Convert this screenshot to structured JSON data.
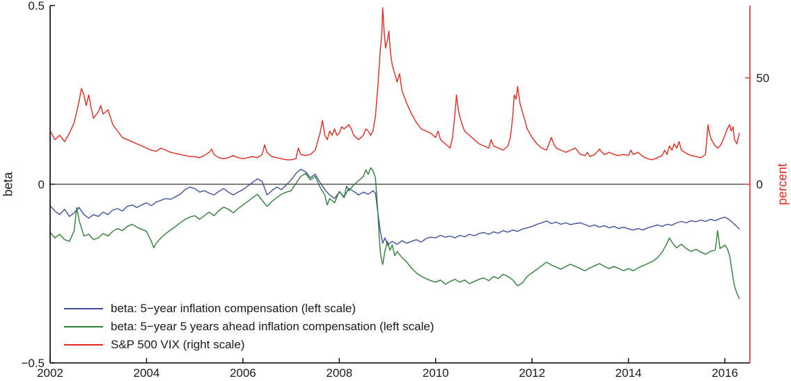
{
  "figure": {
    "background_color": "#ffffff",
    "axes_color": "#000000",
    "right_axis_color": "#e8281e"
  },
  "chart_data": {
    "type": "line",
    "title": "",
    "xlabel": "",
    "ylabel_left": "beta",
    "ylabel_right": "percent",
    "xlim": [
      2002,
      2016.52
    ],
    "ylim_left": [
      -0.5,
      0.5
    ],
    "ylim_right": [
      -84,
      84
    ],
    "grid": false,
    "legend_position": "bottom-left",
    "zero_line_value": 0,
    "x_ticks": [
      {
        "value": 2002,
        "label": "2002"
      },
      {
        "value": 2004,
        "label": "2004"
      },
      {
        "value": 2006,
        "label": "2006"
      },
      {
        "value": 2008,
        "label": "2008"
      },
      {
        "value": 2010,
        "label": "2010"
      },
      {
        "value": 2012,
        "label": "2012"
      },
      {
        "value": 2014,
        "label": "2014"
      },
      {
        "value": 2016,
        "label": "2016"
      }
    ],
    "left_ticks": [
      {
        "value": 0.5,
        "label": "0.5"
      },
      {
        "value": 0,
        "label": "0"
      },
      {
        "value": -0.5,
        "label": "−0.5"
      }
    ],
    "right_ticks": [
      {
        "value": 50,
        "label": "50"
      },
      {
        "value": 0,
        "label": "0"
      }
    ],
    "series": [
      {
        "slug": "beta-5y-inflation-compensation",
        "name": "beta: 5−year inflation compensation (left scale)",
        "axis": "left",
        "color": "#404ea0",
        "x": [
          2002.0,
          2002.1,
          2002.2,
          2002.3,
          2002.4,
          2002.5,
          2002.6,
          2002.7,
          2002.8,
          2002.9,
          2003.0,
          2003.1,
          2003.2,
          2003.3,
          2003.4,
          2003.5,
          2003.6,
          2003.7,
          2003.8,
          2003.9,
          2004.0,
          2004.1,
          2004.2,
          2004.3,
          2004.4,
          2004.5,
          2004.6,
          2004.7,
          2004.8,
          2004.9,
          2005.0,
          2005.1,
          2005.2,
          2005.3,
          2005.4,
          2005.5,
          2005.6,
          2005.7,
          2005.8,
          2005.9,
          2006.0,
          2006.1,
          2006.2,
          2006.3,
          2006.4,
          2006.5,
          2006.6,
          2006.7,
          2006.8,
          2006.9,
          2007.0,
          2007.1,
          2007.2,
          2007.3,
          2007.4,
          2007.5,
          2007.6,
          2007.7,
          2007.8,
          2007.9,
          2008.0,
          2008.1,
          2008.2,
          2008.3,
          2008.4,
          2008.5,
          2008.6,
          2008.7,
          2008.75,
          2008.8,
          2008.85,
          2008.9,
          2008.95,
          2009.0,
          2009.1,
          2009.2,
          2009.3,
          2009.4,
          2009.5,
          2009.6,
          2009.7,
          2009.8,
          2009.9,
          2010.0,
          2010.1,
          2010.2,
          2010.3,
          2010.4,
          2010.5,
          2010.6,
          2010.7,
          2010.8,
          2010.9,
          2011.0,
          2011.1,
          2011.2,
          2011.3,
          2011.4,
          2011.5,
          2011.6,
          2011.7,
          2011.8,
          2011.9,
          2012.0,
          2012.1,
          2012.2,
          2012.3,
          2012.4,
          2012.5,
          2012.6,
          2012.7,
          2012.8,
          2012.9,
          2013.0,
          2013.1,
          2013.2,
          2013.3,
          2013.4,
          2013.5,
          2013.6,
          2013.7,
          2013.8,
          2013.9,
          2014.0,
          2014.1,
          2014.2,
          2014.3,
          2014.4,
          2014.5,
          2014.6,
          2014.7,
          2014.8,
          2014.9,
          2015.0,
          2015.1,
          2015.2,
          2015.3,
          2015.4,
          2015.5,
          2015.6,
          2015.7,
          2015.8,
          2015.9,
          2016.0,
          2016.1,
          2016.2,
          2016.3
        ],
        "y": [
          -0.06,
          -0.075,
          -0.085,
          -0.07,
          -0.09,
          -0.08,
          -0.065,
          -0.085,
          -0.095,
          -0.085,
          -0.09,
          -0.078,
          -0.085,
          -0.072,
          -0.068,
          -0.075,
          -0.062,
          -0.058,
          -0.065,
          -0.058,
          -0.052,
          -0.06,
          -0.05,
          -0.045,
          -0.04,
          -0.042,
          -0.035,
          -0.028,
          -0.015,
          -0.008,
          -0.012,
          -0.022,
          -0.018,
          -0.025,
          -0.03,
          -0.02,
          -0.012,
          -0.022,
          -0.03,
          -0.022,
          -0.015,
          -0.005,
          0.005,
          0.015,
          0.008,
          -0.03,
          -0.018,
          -0.008,
          -0.015,
          -0.002,
          0.012,
          0.03,
          0.042,
          0.035,
          0.018,
          0.028,
          0.005,
          -0.015,
          -0.03,
          -0.04,
          -0.022,
          -0.035,
          -0.012,
          -0.02,
          -0.03,
          -0.022,
          -0.028,
          -0.018,
          -0.025,
          -0.08,
          -0.13,
          -0.165,
          -0.15,
          -0.17,
          -0.16,
          -0.168,
          -0.158,
          -0.165,
          -0.16,
          -0.155,
          -0.162,
          -0.152,
          -0.148,
          -0.15,
          -0.143,
          -0.148,
          -0.145,
          -0.15,
          -0.143,
          -0.147,
          -0.14,
          -0.144,
          -0.138,
          -0.135,
          -0.14,
          -0.133,
          -0.137,
          -0.13,
          -0.134,
          -0.128,
          -0.132,
          -0.125,
          -0.122,
          -0.118,
          -0.112,
          -0.108,
          -0.103,
          -0.11,
          -0.106,
          -0.112,
          -0.108,
          -0.113,
          -0.11,
          -0.108,
          -0.113,
          -0.118,
          -0.114,
          -0.12,
          -0.116,
          -0.122,
          -0.118,
          -0.124,
          -0.12,
          -0.125,
          -0.128,
          -0.124,
          -0.128,
          -0.122,
          -0.118,
          -0.114,
          -0.118,
          -0.112,
          -0.115,
          -0.108,
          -0.104,
          -0.108,
          -0.102,
          -0.105,
          -0.1,
          -0.104,
          -0.098,
          -0.102,
          -0.096,
          -0.092,
          -0.1,
          -0.112,
          -0.125
        ]
      },
      {
        "slug": "beta-5y5y-inflation-compensation",
        "name": "beta: 5−year 5 years ahead inflation compensation (left scale)",
        "axis": "left",
        "color": "#2b8235",
        "x": [
          2002.0,
          2002.1,
          2002.2,
          2002.3,
          2002.4,
          2002.5,
          2002.55,
          2002.6,
          2002.7,
          2002.8,
          2002.9,
          2003.0,
          2003.1,
          2003.2,
          2003.3,
          2003.4,
          2003.5,
          2003.6,
          2003.7,
          2003.8,
          2003.9,
          2004.0,
          2004.1,
          2004.15,
          2004.2,
          2004.3,
          2004.4,
          2004.5,
          2004.6,
          2004.7,
          2004.8,
          2004.9,
          2005.0,
          2005.1,
          2005.2,
          2005.3,
          2005.4,
          2005.5,
          2005.6,
          2005.7,
          2005.8,
          2005.9,
          2006.0,
          2006.1,
          2006.2,
          2006.3,
          2006.4,
          2006.5,
          2006.6,
          2006.7,
          2006.8,
          2006.9,
          2007.0,
          2007.1,
          2007.2,
          2007.3,
          2007.4,
          2007.5,
          2007.6,
          2007.7,
          2007.75,
          2007.8,
          2007.9,
          2008.0,
          2008.1,
          2008.15,
          2008.2,
          2008.3,
          2008.4,
          2008.5,
          2008.55,
          2008.6,
          2008.65,
          2008.7,
          2008.75,
          2008.8,
          2008.83,
          2008.86,
          2008.9,
          2008.95,
          2009.0,
          2009.05,
          2009.1,
          2009.15,
          2009.2,
          2009.3,
          2009.4,
          2009.5,
          2009.6,
          2009.7,
          2009.8,
          2009.9,
          2010.0,
          2010.1,
          2010.2,
          2010.3,
          2010.4,
          2010.5,
          2010.6,
          2010.7,
          2010.8,
          2010.9,
          2011.0,
          2011.1,
          2011.2,
          2011.3,
          2011.4,
          2011.5,
          2011.6,
          2011.7,
          2011.8,
          2011.9,
          2012.0,
          2012.1,
          2012.2,
          2012.3,
          2012.4,
          2012.5,
          2012.6,
          2012.7,
          2012.8,
          2012.9,
          2013.0,
          2013.1,
          2013.2,
          2013.3,
          2013.4,
          2013.5,
          2013.6,
          2013.7,
          2013.8,
          2013.9,
          2014.0,
          2014.1,
          2014.2,
          2014.3,
          2014.4,
          2014.5,
          2014.6,
          2014.7,
          2014.8,
          2014.85,
          2014.9,
          2015.0,
          2015.1,
          2015.2,
          2015.3,
          2015.4,
          2015.5,
          2015.6,
          2015.7,
          2015.8,
          2015.85,
          2015.9,
          2016.0,
          2016.05,
          2016.1,
          2016.15,
          2016.2,
          2016.25,
          2016.3
        ],
        "y": [
          -0.135,
          -0.15,
          -0.14,
          -0.155,
          -0.16,
          -0.13,
          -0.065,
          -0.1,
          -0.145,
          -0.14,
          -0.155,
          -0.15,
          -0.138,
          -0.145,
          -0.132,
          -0.124,
          -0.13,
          -0.118,
          -0.112,
          -0.12,
          -0.126,
          -0.132,
          -0.16,
          -0.178,
          -0.165,
          -0.15,
          -0.138,
          -0.128,
          -0.118,
          -0.108,
          -0.098,
          -0.092,
          -0.088,
          -0.098,
          -0.088,
          -0.078,
          -0.088,
          -0.074,
          -0.064,
          -0.07,
          -0.08,
          -0.068,
          -0.058,
          -0.048,
          -0.038,
          -0.028,
          -0.045,
          -0.062,
          -0.048,
          -0.038,
          -0.028,
          -0.022,
          -0.018,
          0.002,
          0.022,
          0.03,
          0.012,
          0.022,
          -0.008,
          -0.03,
          -0.058,
          -0.04,
          -0.052,
          -0.02,
          -0.038,
          -0.005,
          -0.018,
          -0.002,
          0.01,
          0.022,
          0.04,
          0.028,
          0.046,
          0.038,
          0.018,
          -0.08,
          -0.15,
          -0.2,
          -0.225,
          -0.185,
          -0.16,
          -0.185,
          -0.17,
          -0.2,
          -0.188,
          -0.205,
          -0.218,
          -0.235,
          -0.248,
          -0.258,
          -0.264,
          -0.27,
          -0.274,
          -0.268,
          -0.28,
          -0.272,
          -0.266,
          -0.274,
          -0.268,
          -0.278,
          -0.272,
          -0.266,
          -0.262,
          -0.27,
          -0.258,
          -0.264,
          -0.252,
          -0.258,
          -0.268,
          -0.284,
          -0.276,
          -0.258,
          -0.248,
          -0.238,
          -0.228,
          -0.218,
          -0.226,
          -0.232,
          -0.238,
          -0.23,
          -0.224,
          -0.23,
          -0.236,
          -0.242,
          -0.234,
          -0.228,
          -0.222,
          -0.23,
          -0.236,
          -0.23,
          -0.236,
          -0.242,
          -0.236,
          -0.242,
          -0.234,
          -0.228,
          -0.222,
          -0.216,
          -0.206,
          -0.19,
          -0.165,
          -0.15,
          -0.162,
          -0.178,
          -0.168,
          -0.18,
          -0.188,
          -0.182,
          -0.19,
          -0.196,
          -0.188,
          -0.184,
          -0.13,
          -0.18,
          -0.17,
          -0.18,
          -0.2,
          -0.245,
          -0.285,
          -0.305,
          -0.32
        ]
      },
      {
        "slug": "sp500-vix",
        "name": "S&P 500 VIX (right scale)",
        "axis": "right",
        "color": "#e8281e",
        "x": [
          2002.0,
          2002.1,
          2002.2,
          2002.3,
          2002.4,
          2002.5,
          2002.55,
          2002.6,
          2002.65,
          2002.7,
          2002.75,
          2002.8,
          2002.85,
          2002.9,
          2003.0,
          2003.05,
          2003.1,
          2003.2,
          2003.3,
          2003.4,
          2003.5,
          2003.6,
          2003.7,
          2003.8,
          2003.9,
          2004.0,
          2004.1,
          2004.2,
          2004.3,
          2004.4,
          2004.5,
          2004.6,
          2004.7,
          2004.8,
          2004.9,
          2005.0,
          2005.1,
          2005.2,
          2005.3,
          2005.35,
          2005.4,
          2005.5,
          2005.6,
          2005.7,
          2005.8,
          2005.9,
          2006.0,
          2006.1,
          2006.2,
          2006.3,
          2006.4,
          2006.45,
          2006.5,
          2006.6,
          2006.7,
          2006.8,
          2006.9,
          2007.0,
          2007.1,
          2007.15,
          2007.2,
          2007.3,
          2007.4,
          2007.5,
          2007.6,
          2007.65,
          2007.7,
          2007.75,
          2007.8,
          2007.85,
          2007.9,
          2007.95,
          2008.0,
          2008.05,
          2008.1,
          2008.2,
          2008.25,
          2008.3,
          2008.4,
          2008.5,
          2008.55,
          2008.6,
          2008.65,
          2008.7,
          2008.75,
          2008.8,
          2008.85,
          2008.88,
          2008.9,
          2008.93,
          2008.96,
          2009.0,
          2009.03,
          2009.06,
          2009.1,
          2009.15,
          2009.2,
          2009.25,
          2009.3,
          2009.4,
          2009.5,
          2009.6,
          2009.7,
          2009.8,
          2009.9,
          2010.0,
          2010.05,
          2010.1,
          2010.2,
          2010.3,
          2010.35,
          2010.4,
          2010.43,
          2010.47,
          2010.5,
          2010.55,
          2010.6,
          2010.7,
          2010.8,
          2010.9,
          2011.0,
          2011.1,
          2011.15,
          2011.2,
          2011.3,
          2011.4,
          2011.5,
          2011.55,
          2011.6,
          2011.63,
          2011.67,
          2011.7,
          2011.75,
          2011.8,
          2011.85,
          2011.9,
          2012.0,
          2012.1,
          2012.2,
          2012.3,
          2012.35,
          2012.4,
          2012.45,
          2012.5,
          2012.6,
          2012.7,
          2012.8,
          2012.9,
          2013.0,
          2013.1,
          2013.15,
          2013.2,
          2013.3,
          2013.4,
          2013.45,
          2013.5,
          2013.6,
          2013.7,
          2013.8,
          2013.9,
          2014.0,
          2014.05,
          2014.1,
          2014.2,
          2014.3,
          2014.4,
          2014.5,
          2014.6,
          2014.7,
          2014.75,
          2014.8,
          2014.85,
          2014.9,
          2014.95,
          2015.0,
          2015.05,
          2015.1,
          2015.2,
          2015.3,
          2015.4,
          2015.5,
          2015.6,
          2015.65,
          2015.68,
          2015.72,
          2015.8,
          2015.85,
          2015.9,
          2015.95,
          2016.0,
          2016.05,
          2016.1,
          2016.13,
          2016.17,
          2016.2,
          2016.25,
          2016.3
        ],
        "y": [
          25,
          21,
          23,
          20,
          24,
          29,
          34,
          39,
          45,
          42,
          37,
          42,
          36,
          31,
          34,
          37,
          33,
          35,
          28,
          25,
          22,
          21,
          20,
          19,
          18,
          17,
          16,
          15.5,
          17,
          16,
          15,
          14.5,
          14,
          13.5,
          13,
          13,
          12.5,
          13.5,
          15,
          16.5,
          14,
          12.5,
          12,
          12.5,
          13.5,
          12.5,
          12,
          12.5,
          13,
          12.5,
          14,
          18.5,
          15,
          13,
          12.5,
          12,
          11.5,
          11.5,
          12,
          17,
          14,
          13.5,
          14,
          16,
          24,
          30,
          23,
          21,
          25,
          23,
          26,
          23,
          24,
          27,
          26,
          28,
          26,
          23,
          21,
          23,
          26,
          25,
          23,
          25,
          32,
          46,
          63,
          70,
          83,
          72,
          64,
          68,
          72,
          62,
          56,
          52,
          48,
          52,
          44,
          38,
          33,
          29,
          26,
          25,
          24,
          22,
          25,
          21,
          19,
          17,
          22,
          33,
          42,
          35,
          32,
          28,
          25,
          23,
          21,
          19,
          18,
          17,
          21,
          18,
          17,
          16,
          18,
          22,
          32,
          42,
          40,
          46,
          38,
          34,
          30,
          26,
          22,
          19,
          17,
          16,
          19,
          22,
          19,
          17,
          16,
          15,
          16,
          17,
          14,
          13.5,
          15,
          13,
          14,
          16.5,
          15,
          14,
          15,
          14,
          13.5,
          14,
          13.5,
          16,
          14,
          15,
          13,
          12,
          11.5,
          12.5,
          13.5,
          16,
          14,
          18,
          16,
          19,
          17,
          20,
          16,
          14.5,
          13.5,
          13,
          12.5,
          14,
          28,
          24,
          21,
          18,
          17,
          18,
          20,
          23,
          26,
          28,
          25,
          27,
          21,
          19,
          24
        ]
      }
    ]
  }
}
